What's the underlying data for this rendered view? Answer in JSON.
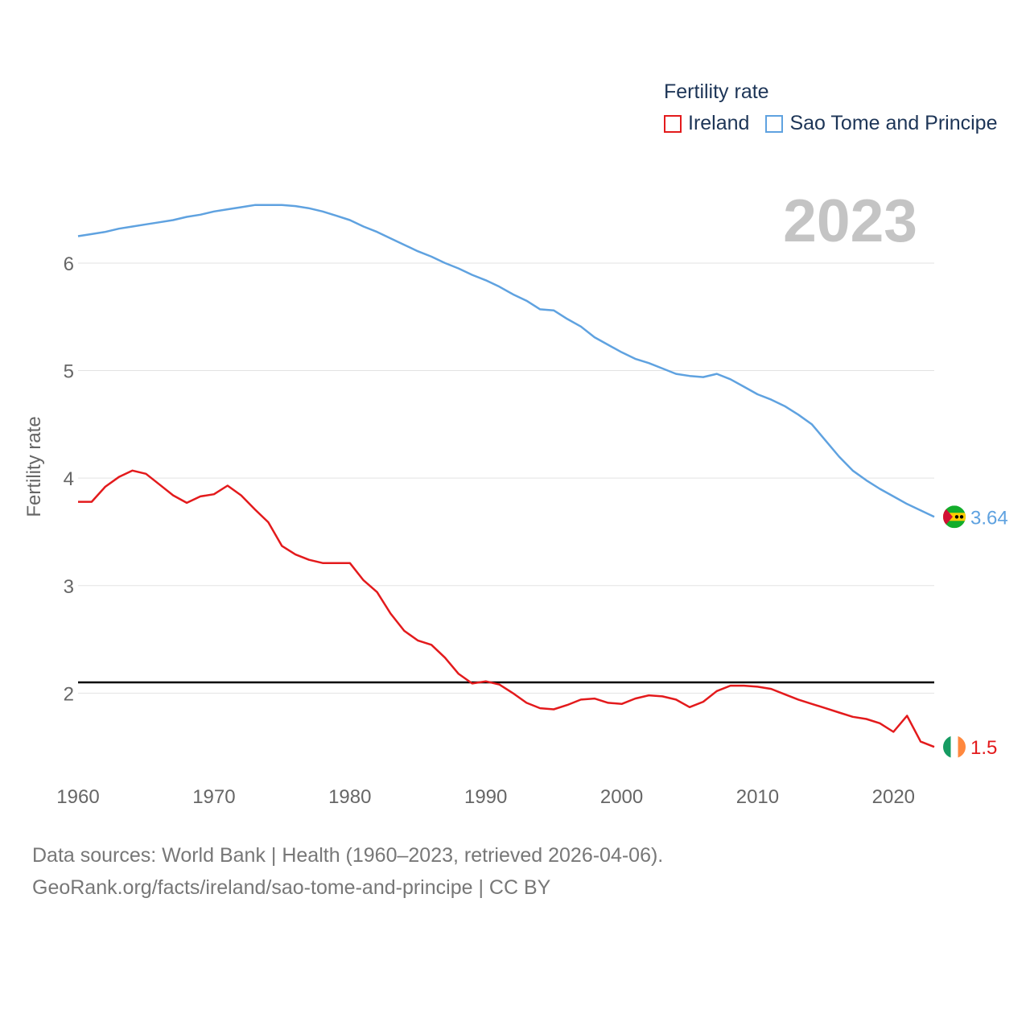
{
  "legend": {
    "title": "Fertility rate",
    "items": [
      {
        "label": "Ireland",
        "color": "#e31a1c"
      },
      {
        "label": "Sao Tome and Principe",
        "color": "#5fa2e0"
      }
    ]
  },
  "footer": {
    "line1": "Data sources: World Bank | Health (1960–2023, retrieved 2026-04-06).",
    "line2": "GeoRank.org/facts/ireland/sao-tome-and-principe | CC BY"
  },
  "chart_data": {
    "type": "line",
    "title": "Fertility rate",
    "year_label": "2023",
    "xlabel": "",
    "ylabel": "Fertility rate",
    "xlim": [
      1960,
      2023
    ],
    "ylim": [
      1.15,
      6.95
    ],
    "x_ticks": [
      1960,
      1970,
      1980,
      1990,
      2000,
      2010,
      2020
    ],
    "y_ticks": [
      2,
      3,
      4,
      5,
      6
    ],
    "reference_line": 2.1,
    "x": [
      1960,
      1961,
      1962,
      1963,
      1964,
      1965,
      1966,
      1967,
      1968,
      1969,
      1970,
      1971,
      1972,
      1973,
      1974,
      1975,
      1976,
      1977,
      1978,
      1979,
      1980,
      1981,
      1982,
      1983,
      1984,
      1985,
      1986,
      1987,
      1988,
      1989,
      1990,
      1991,
      1992,
      1993,
      1994,
      1995,
      1996,
      1997,
      1998,
      1999,
      2000,
      2001,
      2002,
      2003,
      2004,
      2005,
      2006,
      2007,
      2008,
      2009,
      2010,
      2011,
      2012,
      2013,
      2014,
      2015,
      2016,
      2017,
      2018,
      2019,
      2020,
      2021,
      2022,
      2023
    ],
    "series": [
      {
        "name": "Ireland",
        "color": "#e31a1c",
        "end_label": "1.5",
        "values": [
          3.78,
          3.78,
          3.92,
          4.01,
          4.07,
          4.04,
          3.94,
          3.84,
          3.77,
          3.83,
          3.85,
          3.93,
          3.84,
          3.71,
          3.59,
          3.37,
          3.29,
          3.24,
          3.21,
          3.21,
          3.21,
          3.05,
          2.94,
          2.74,
          2.58,
          2.49,
          2.45,
          2.33,
          2.18,
          2.09,
          2.11,
          2.08,
          2.0,
          1.91,
          1.86,
          1.85,
          1.89,
          1.94,
          1.95,
          1.91,
          1.9,
          1.95,
          1.98,
          1.97,
          1.94,
          1.87,
          1.92,
          2.02,
          2.07,
          2.07,
          2.06,
          2.04,
          1.99,
          1.94,
          1.9,
          1.86,
          1.82,
          1.78,
          1.76,
          1.72,
          1.64,
          1.79,
          1.55,
          1.5
        ]
      },
      {
        "name": "Sao Tome and Principe",
        "color": "#5fa2e0",
        "end_label": "3.64",
        "values": [
          6.25,
          6.27,
          6.29,
          6.32,
          6.34,
          6.36,
          6.38,
          6.4,
          6.43,
          6.45,
          6.48,
          6.5,
          6.52,
          6.54,
          6.54,
          6.54,
          6.53,
          6.51,
          6.48,
          6.44,
          6.4,
          6.34,
          6.29,
          6.23,
          6.17,
          6.11,
          6.06,
          6.0,
          5.95,
          5.89,
          5.84,
          5.78,
          5.71,
          5.65,
          5.57,
          5.56,
          5.48,
          5.41,
          5.31,
          5.24,
          5.17,
          5.11,
          5.07,
          5.02,
          4.97,
          4.95,
          4.94,
          4.97,
          4.92,
          4.85,
          4.78,
          4.73,
          4.67,
          4.59,
          4.5,
          4.35,
          4.2,
          4.07,
          3.98,
          3.9,
          3.83,
          3.76,
          3.7,
          3.64
        ]
      }
    ]
  }
}
